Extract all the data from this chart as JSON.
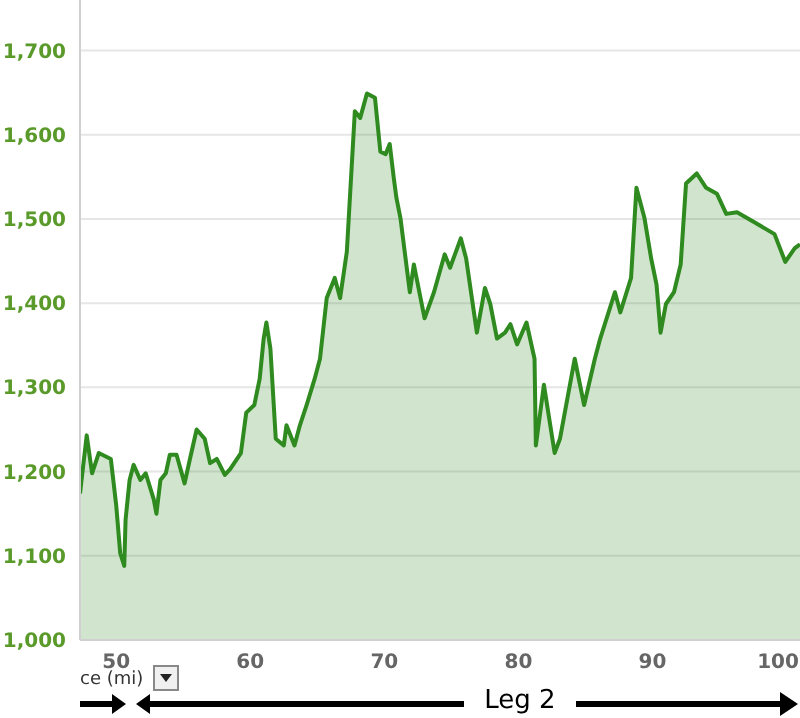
{
  "chart_data": {
    "type": "area",
    "x": [
      47.3,
      47.8,
      48.2,
      48.7,
      49.6,
      50.0,
      50.3,
      50.6,
      50.7,
      51.0,
      51.3,
      51.8,
      52.2,
      52.8,
      53.0,
      53.3,
      53.7,
      54.0,
      54.5,
      55.1,
      55.5,
      56.0,
      56.6,
      57.0,
      57.5,
      58.1,
      58.5,
      59.3,
      59.7,
      60.3,
      60.7,
      61.0,
      61.2,
      61.5,
      61.9,
      62.5,
      62.7,
      63.3,
      63.7,
      64.2,
      64.8,
      65.2,
      65.7,
      66.3,
      66.7,
      67.2,
      67.8,
      68.2,
      68.7,
      69.3,
      69.7,
      70.1,
      70.4,
      70.7,
      70.9,
      71.2,
      71.9,
      72.2,
      73.0,
      73.7,
      74.5,
      74.9,
      75.7,
      76.1,
      76.9,
      77.5,
      77.9,
      78.4,
      79.0,
      79.4,
      79.9,
      80.6,
      81.2,
      81.3,
      81.9,
      82.7,
      83.1,
      84.2,
      84.9,
      85.7,
      86.1,
      87.2,
      87.6,
      88.4,
      88.8,
      89.4,
      89.9,
      90.3,
      90.6,
      91.0,
      91.6,
      92.1,
      92.5,
      93.3,
      94.0,
      94.8,
      95.5,
      96.3,
      97.6,
      99.1,
      99.9,
      100.6,
      101.0
    ],
    "series": [
      {
        "color": "#2f8a1f",
        "values": [
          1174,
          1243,
          1198,
          1222,
          1215,
          1160,
          1103,
          1088,
          1143,
          1190,
          1208,
          1190,
          1198,
          1167,
          1150,
          1190,
          1198,
          1220,
          1220,
          1186,
          1215,
          1250,
          1239,
          1210,
          1215,
          1196,
          1203,
          1222,
          1270,
          1279,
          1310,
          1358,
          1377,
          1346,
          1239,
          1231,
          1255,
          1231,
          1255,
          1279,
          1310,
          1334,
          1406,
          1430,
          1406,
          1461,
          1628,
          1620,
          1649,
          1644,
          1580,
          1577,
          1589,
          1549,
          1525,
          1501,
          1413,
          1446,
          1382,
          1413,
          1458,
          1442,
          1477,
          1453,
          1365,
          1418,
          1399,
          1358,
          1365,
          1375,
          1351,
          1377,
          1334,
          1231,
          1303,
          1222,
          1239,
          1334,
          1279,
          1334,
          1358,
          1413,
          1389,
          1430,
          1537,
          1501,
          1453,
          1422,
          1365,
          1399,
          1413,
          1446,
          1542,
          1554,
          1537,
          1530,
          1506,
          1508,
          1496,
          1482,
          1449,
          1465,
          1470
        ]
      }
    ],
    "xlim": [
      47.3,
      101
    ],
    "ylim": [
      1000,
      1760
    ],
    "xticks": [
      50,
      60,
      70,
      80,
      90,
      100
    ],
    "yticks": [
      {
        "value": 1000,
        "label": "1,000"
      },
      {
        "value": 1100,
        "label": "1,100"
      },
      {
        "value": 1200,
        "label": "1,200"
      },
      {
        "value": 1300,
        "label": "1,300"
      },
      {
        "value": 1400,
        "label": "1,400"
      },
      {
        "value": 1500,
        "label": "1,500"
      },
      {
        "value": 1600,
        "label": "1,600"
      },
      {
        "value": 1700,
        "label": "1,700"
      }
    ],
    "grid": "y",
    "annotations": [
      "ce (mi)",
      "Leg 2"
    ]
  }
}
